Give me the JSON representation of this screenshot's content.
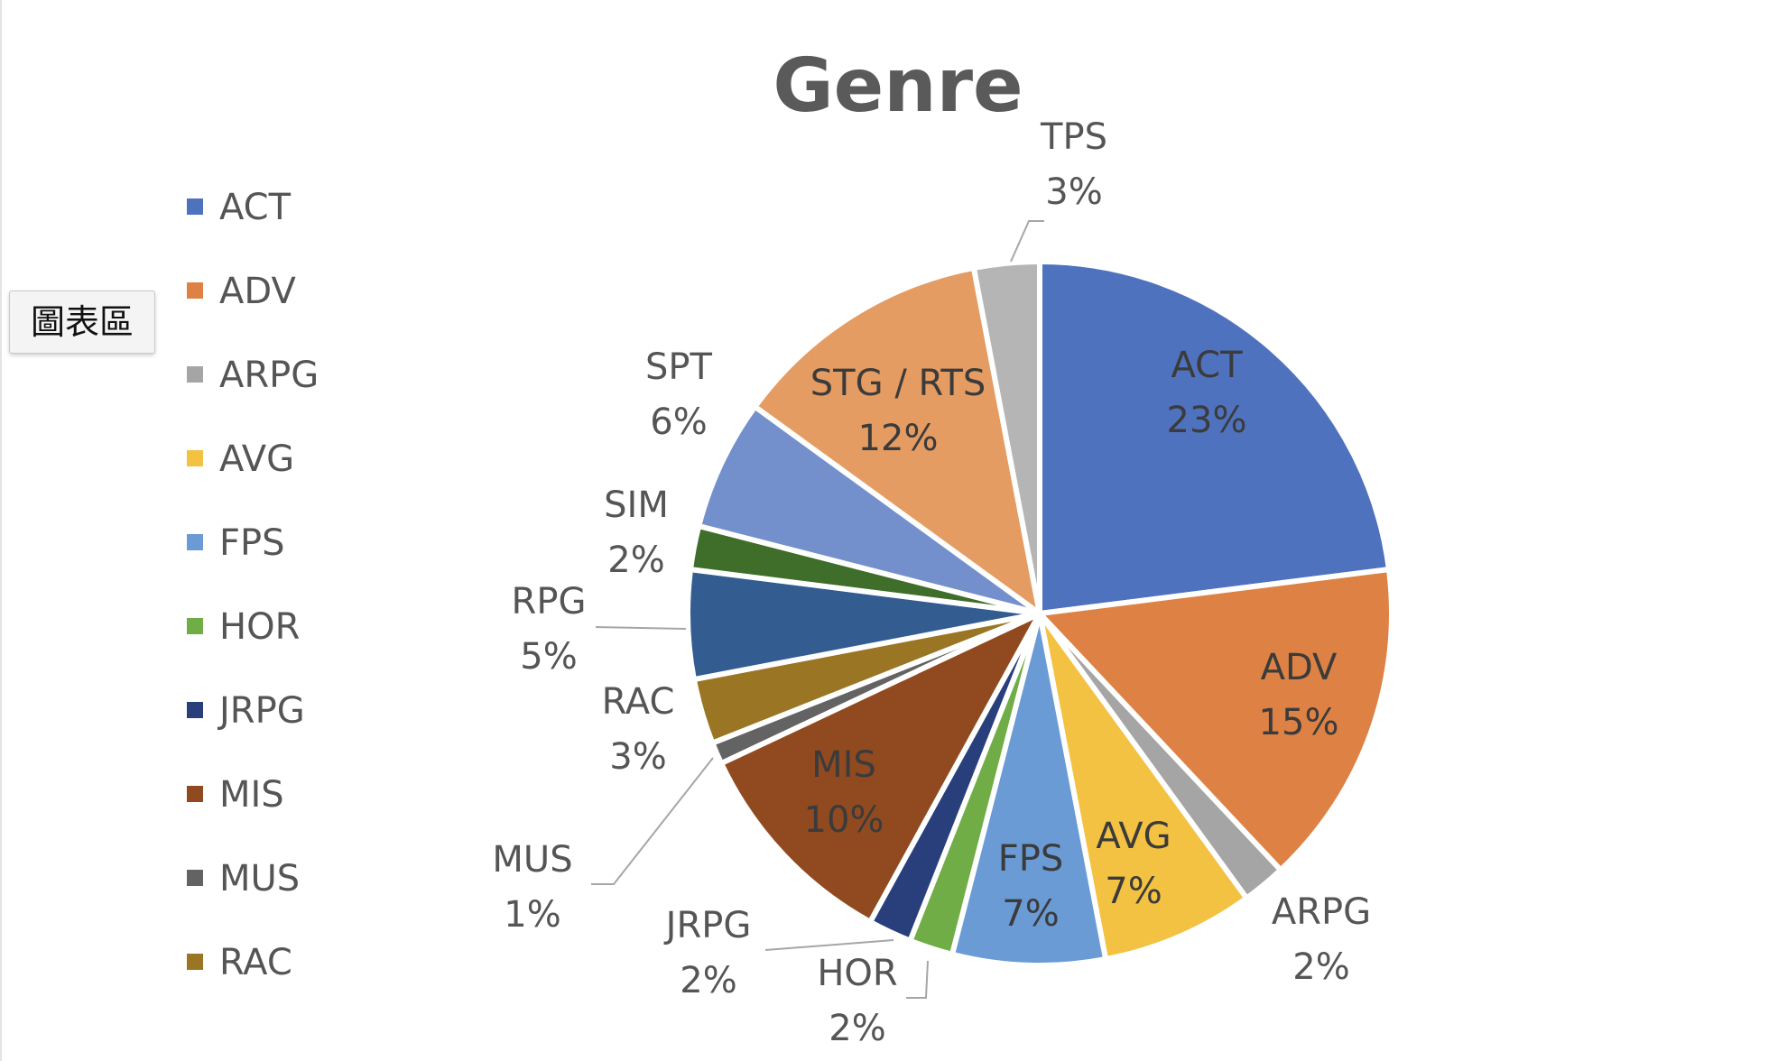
{
  "tooltip": {
    "text": "圖表區"
  },
  "chart_data": {
    "type": "pie",
    "title": "Genre",
    "legend": {
      "position": "left",
      "visible_entries": [
        "ACT",
        "ADV",
        "ARPG",
        "AVG",
        "FPS",
        "HOR",
        "JRPG",
        "MIS",
        "MUS",
        "RAC"
      ]
    },
    "slices": [
      {
        "name": "ACT",
        "pct_label": "23%",
        "value": 23,
        "color": "#4f72be"
      },
      {
        "name": "ADV",
        "pct_label": "15%",
        "value": 15,
        "color": "#dd8244"
      },
      {
        "name": "ARPG",
        "pct_label": "2%",
        "value": 2,
        "color": "#a5a5a5"
      },
      {
        "name": "AVG",
        "pct_label": "7%",
        "value": 7,
        "color": "#f4c242"
      },
      {
        "name": "FPS",
        "pct_label": "7%",
        "value": 7,
        "color": "#6a9bd5"
      },
      {
        "name": "HOR",
        "pct_label": "2%",
        "value": 2,
        "color": "#70ad47"
      },
      {
        "name": "JRPG",
        "pct_label": "2%",
        "value": 2,
        "color": "#283f7c"
      },
      {
        "name": "MIS",
        "pct_label": "10%",
        "value": 10,
        "color": "#914a1f"
      },
      {
        "name": "MUS",
        "pct_label": "1%",
        "value": 1,
        "color": "#636363"
      },
      {
        "name": "RAC",
        "pct_label": "3%",
        "value": 3,
        "color": "#9a7624"
      },
      {
        "name": "RPG",
        "pct_label": "5%",
        "value": 5,
        "color": "#335d91"
      },
      {
        "name": "SIM",
        "pct_label": "2%",
        "value": 2,
        "color": "#3f6d2a"
      },
      {
        "name": "SPT",
        "pct_label": "6%",
        "value": 6,
        "color": "#7490cc"
      },
      {
        "name": "STG / RTS",
        "pct_label": "12%",
        "value": 12,
        "color": "#e49c63"
      },
      {
        "name": "TPS",
        "pct_label": "3%",
        "value": 3,
        "color": "#b5b5b5"
      }
    ]
  }
}
